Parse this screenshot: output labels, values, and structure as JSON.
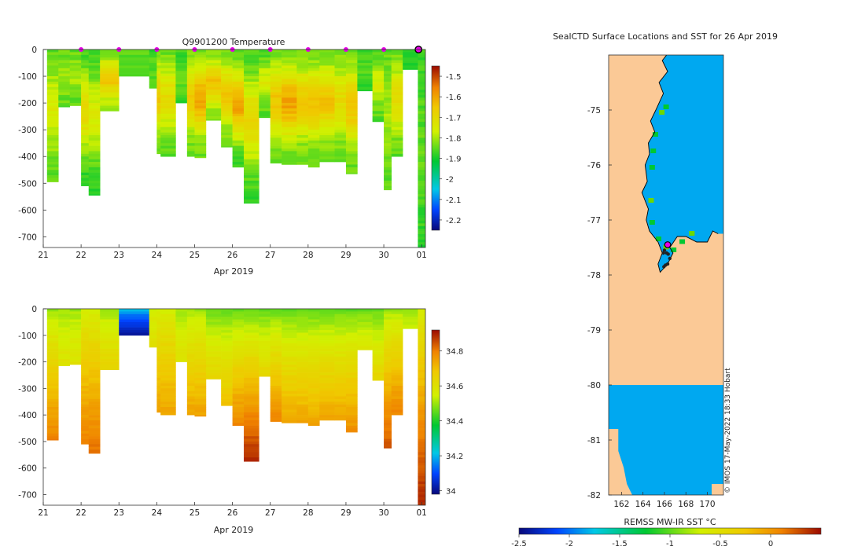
{
  "top_panel": {
    "title": "Q9901200  Temperature",
    "x_ticks": [
      "21",
      "22",
      "23",
      "24",
      "25",
      "26",
      "27",
      "28",
      "29",
      "30",
      "01"
    ],
    "x_label": "Apr 2019",
    "y_ticks": [
      "0",
      "-100",
      "-200",
      "-300",
      "-400",
      "-500",
      "-600",
      "-700"
    ],
    "colorbar_ticks": [
      "-1.5",
      "-1.6",
      "-1.7",
      "-1.8",
      "-1.9",
      "-2",
      "-2.1",
      "-2.2"
    ]
  },
  "bottom_panel": {
    "x_ticks": [
      "21",
      "22",
      "23",
      "24",
      "25",
      "26",
      "27",
      "28",
      "29",
      "30",
      "01"
    ],
    "x_label": "Apr 2019",
    "y_ticks": [
      "0",
      "-100",
      "-200",
      "-300",
      "-400",
      "-500",
      "-600",
      "-700"
    ],
    "colorbar_ticks": [
      "34.8",
      "34.6",
      "34.4",
      "34.2",
      "34"
    ]
  },
  "map_panel": {
    "title": "SealCTD Surface Locations and SST for 26 Apr 2019",
    "y_ticks": [
      "-75",
      "-76",
      "-77",
      "-78",
      "-79",
      "-80",
      "-81",
      "-82"
    ],
    "x_ticks": [
      "162",
      "164",
      "166",
      "168",
      "170"
    ],
    "colorbar_label": "REMSS MW-IR SST °C",
    "colorbar_ticks": [
      "-2.5",
      "-2",
      "-1.5",
      "-1",
      "-0.5",
      "0"
    ],
    "credit": "© IMOS 17-May-2022 18:33 Hobart"
  },
  "chart_data": [
    {
      "type": "heatmap",
      "title": "Q9901200  Temperature",
      "xlabel": "Apr 2019",
      "ylabel": "",
      "xlim": [
        21,
        31.1
      ],
      "ylim": [
        -740,
        0
      ],
      "clim": [
        -2.25,
        -1.45
      ],
      "surface_markers_day": [
        22,
        23,
        24,
        25,
        26,
        27,
        28,
        29,
        30
      ],
      "latest_marker_day": 31,
      "profiles": [
        {
          "day": 21.1,
          "depth": 495,
          "surface": -1.85,
          "mid": -1.75,
          "deep": -1.85
        },
        {
          "day": 21.4,
          "depth": 215,
          "surface": -1.85,
          "mid": -1.8,
          "deep": -1.85
        },
        {
          "day": 21.7,
          "depth": 210,
          "surface": -1.85,
          "mid": -1.8,
          "deep": -1.85
        },
        {
          "day": 22.0,
          "depth": 510,
          "surface": -1.88,
          "mid": -1.7,
          "deep": -1.9
        },
        {
          "day": 22.2,
          "depth": 545,
          "surface": -1.88,
          "mid": -1.75,
          "deep": -1.9
        },
        {
          "day": 22.5,
          "depth": 230,
          "surface": -1.85,
          "mid": -1.65,
          "deep": -1.7
        },
        {
          "day": 23.0,
          "depth": 100,
          "surface": -1.85,
          "mid": -1.85,
          "deep": -1.85
        },
        {
          "day": 23.8,
          "depth": 145,
          "surface": -1.88,
          "mid": -1.85,
          "deep": -1.85
        },
        {
          "day": 24.0,
          "depth": 390,
          "surface": -1.85,
          "mid": -1.65,
          "deep": -1.85
        },
        {
          "day": 24.1,
          "depth": 400,
          "surface": -1.85,
          "mid": -1.7,
          "deep": -1.85
        },
        {
          "day": 24.5,
          "depth": 200,
          "surface": -1.88,
          "mid": -1.85,
          "deep": -1.85
        },
        {
          "day": 24.8,
          "depth": 400,
          "surface": -1.85,
          "mid": -1.65,
          "deep": -1.85
        },
        {
          "day": 25.0,
          "depth": 405,
          "surface": -1.85,
          "mid": -1.6,
          "deep": -1.85
        },
        {
          "day": 25.3,
          "depth": 265,
          "surface": -1.85,
          "mid": -1.65,
          "deep": -1.75
        },
        {
          "day": 25.7,
          "depth": 365,
          "surface": -1.85,
          "mid": -1.65,
          "deep": -1.85
        },
        {
          "day": 26.0,
          "depth": 440,
          "surface": -1.88,
          "mid": -1.6,
          "deep": -1.88
        },
        {
          "day": 26.3,
          "depth": 575,
          "surface": -1.88,
          "mid": -1.7,
          "deep": -1.88
        },
        {
          "day": 26.7,
          "depth": 255,
          "surface": -1.88,
          "mid": -1.75,
          "deep": -1.8
        },
        {
          "day": 27.0,
          "depth": 425,
          "surface": -1.85,
          "mid": -1.65,
          "deep": -1.85
        },
        {
          "day": 27.3,
          "depth": 430,
          "surface": -1.85,
          "mid": -1.6,
          "deep": -1.85
        },
        {
          "day": 27.7,
          "depth": 430,
          "surface": -1.85,
          "mid": -1.65,
          "deep": -1.85
        },
        {
          "day": 28.0,
          "depth": 440,
          "surface": -1.85,
          "mid": -1.65,
          "deep": -1.85
        },
        {
          "day": 28.3,
          "depth": 420,
          "surface": -1.85,
          "mid": -1.65,
          "deep": -1.85
        },
        {
          "day": 28.7,
          "depth": 420,
          "surface": -1.85,
          "mid": -1.7,
          "deep": -1.85
        },
        {
          "day": 29.0,
          "depth": 465,
          "surface": -1.85,
          "mid": -1.65,
          "deep": -1.85
        },
        {
          "day": 29.3,
          "depth": 155,
          "surface": -1.88,
          "mid": -1.85,
          "deep": -1.85
        },
        {
          "day": 29.7,
          "depth": 270,
          "surface": -1.88,
          "mid": -1.75,
          "deep": -1.8
        },
        {
          "day": 30.0,
          "depth": 525,
          "surface": -1.85,
          "mid": -1.8,
          "deep": -1.85
        },
        {
          "day": 30.2,
          "depth": 400,
          "surface": -1.85,
          "mid": -1.7,
          "deep": -1.85
        },
        {
          "day": 30.5,
          "depth": 75,
          "surface": -1.88,
          "mid": -1.88,
          "deep": -1.88
        },
        {
          "day": 30.9,
          "depth": 740,
          "surface": -1.88,
          "mid": -1.85,
          "deep": -1.88
        }
      ]
    },
    {
      "type": "heatmap",
      "title": "",
      "xlabel": "Apr 2019",
      "ylabel": "",
      "xlim": [
        21,
        31.1
      ],
      "ylim": [
        -740,
        0
      ],
      "clim": [
        33.98,
        34.92
      ],
      "profiles": [
        {
          "day": 21.1,
          "depth": 495,
          "surface": 34.5,
          "deep": 34.8
        },
        {
          "day": 21.4,
          "depth": 215,
          "surface": 34.5,
          "deep": 34.6
        },
        {
          "day": 21.7,
          "depth": 210,
          "surface": 34.5,
          "deep": 34.6
        },
        {
          "day": 22.0,
          "depth": 510,
          "surface": 34.55,
          "deep": 34.8
        },
        {
          "day": 22.2,
          "depth": 545,
          "surface": 34.55,
          "deep": 34.82
        },
        {
          "day": 22.5,
          "depth": 230,
          "surface": 34.5,
          "deep": 34.65
        },
        {
          "day": 23.0,
          "depth": 100,
          "surface": 34.2,
          "deep": 34.0
        },
        {
          "day": 23.8,
          "depth": 145,
          "surface": 34.55,
          "deep": 34.6
        },
        {
          "day": 24.0,
          "depth": 390,
          "surface": 34.55,
          "deep": 34.75
        },
        {
          "day": 24.1,
          "depth": 400,
          "surface": 34.55,
          "deep": 34.75
        },
        {
          "day": 24.5,
          "depth": 200,
          "surface": 34.5,
          "deep": 34.6
        },
        {
          "day": 24.8,
          "depth": 400,
          "surface": 34.5,
          "deep": 34.75
        },
        {
          "day": 25.0,
          "depth": 405,
          "surface": 34.5,
          "deep": 34.75
        },
        {
          "day": 25.3,
          "depth": 265,
          "surface": 34.45,
          "deep": 34.65
        },
        {
          "day": 25.7,
          "depth": 365,
          "surface": 34.45,
          "deep": 34.7
        },
        {
          "day": 26.0,
          "depth": 440,
          "surface": 34.45,
          "deep": 34.8
        },
        {
          "day": 26.3,
          "depth": 575,
          "surface": 34.45,
          "deep": 34.9
        },
        {
          "day": 26.7,
          "depth": 255,
          "surface": 34.45,
          "deep": 34.65
        },
        {
          "day": 27.0,
          "depth": 425,
          "surface": 34.45,
          "deep": 34.8
        },
        {
          "day": 27.3,
          "depth": 430,
          "surface": 34.45,
          "deep": 34.75
        },
        {
          "day": 27.7,
          "depth": 430,
          "surface": 34.45,
          "deep": 34.75
        },
        {
          "day": 28.0,
          "depth": 440,
          "surface": 34.45,
          "deep": 34.75
        },
        {
          "day": 28.3,
          "depth": 420,
          "surface": 34.45,
          "deep": 34.75
        },
        {
          "day": 28.7,
          "depth": 420,
          "surface": 34.45,
          "deep": 34.75
        },
        {
          "day": 29.0,
          "depth": 465,
          "surface": 34.45,
          "deep": 34.78
        },
        {
          "day": 29.3,
          "depth": 155,
          "surface": 34.45,
          "deep": 34.6
        },
        {
          "day": 29.7,
          "depth": 270,
          "surface": 34.45,
          "deep": 34.65
        },
        {
          "day": 30.0,
          "depth": 525,
          "surface": 34.5,
          "deep": 34.85
        },
        {
          "day": 30.2,
          "depth": 400,
          "surface": 34.5,
          "deep": 34.8
        },
        {
          "day": 30.5,
          "depth": 75,
          "surface": 34.5,
          "deep": 34.55
        },
        {
          "day": 30.9,
          "depth": 740,
          "surface": 34.55,
          "deep": 34.9
        }
      ]
    },
    {
      "type": "heatmap",
      "title": "SealCTD Surface Locations and SST for 26 Apr 2019",
      "xlabel": "",
      "ylabel": "",
      "xlim": [
        160.8,
        171.5
      ],
      "ylim": [
        -82,
        -74
      ],
      "clim": [
        -2.5,
        0.5
      ],
      "colorbar_label": "REMSS MW-IR SST °C",
      "sea_sst_value": -1.65,
      "coast_west_lat_lon": [
        [
          -74.0,
          166.2
        ],
        [
          -74.1,
          165.8
        ],
        [
          -74.3,
          166.3
        ],
        [
          -74.5,
          165.5
        ],
        [
          -74.7,
          165.9
        ],
        [
          -75.0,
          165.2
        ],
        [
          -75.2,
          164.7
        ],
        [
          -75.4,
          165.1
        ],
        [
          -75.6,
          164.5
        ],
        [
          -75.8,
          164.6
        ],
        [
          -76.0,
          164.2
        ],
        [
          -76.3,
          164.4
        ],
        [
          -76.5,
          163.9
        ],
        [
          -76.8,
          164.5
        ],
        [
          -77.0,
          164.3
        ],
        [
          -77.2,
          164.6
        ],
        [
          -77.4,
          165.4
        ],
        [
          -77.6,
          165.8
        ],
        [
          -77.8,
          165.4
        ],
        [
          -77.95,
          165.6
        ],
        [
          -77.8,
          166.3
        ],
        [
          -77.6,
          166.8
        ],
        [
          -77.5,
          166.5
        ],
        [
          -77.3,
          167.2
        ],
        [
          -77.3,
          168.0
        ],
        [
          -77.4,
          169.0
        ],
        [
          -77.4,
          170.0
        ],
        [
          -77.2,
          170.5
        ],
        [
          -77.25,
          171.0
        ]
      ],
      "ice_shelf_edge_lat": -80.0,
      "ice_shelf_gap_lat": -80.8,
      "seal_profile_positions": [
        [
          -77.55,
          166.0
        ],
        [
          -77.6,
          166.2
        ],
        [
          -77.62,
          166.35
        ],
        [
          -77.7,
          166.5
        ],
        [
          -77.6,
          165.9
        ],
        [
          -77.8,
          166.3
        ],
        [
          -77.82,
          166.1
        ],
        [
          -77.85,
          165.95
        ]
      ],
      "latest_position": [
        -77.45,
        166.3
      ]
    }
  ]
}
